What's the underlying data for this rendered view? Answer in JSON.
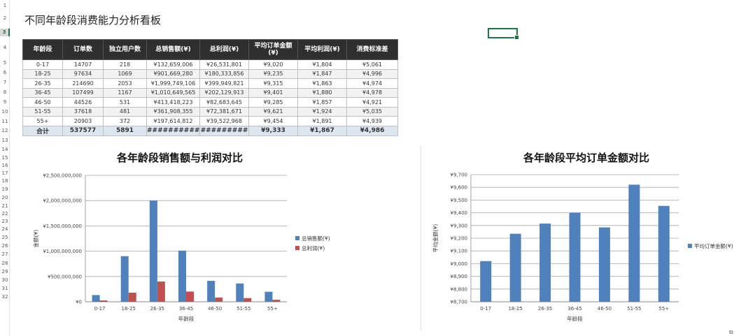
{
  "sheet": {
    "row_numbers": [
      "1",
      "2",
      "3",
      "4",
      "5",
      "6",
      "7",
      "8",
      "9",
      "10",
      "11",
      "12",
      "13",
      "14",
      "15",
      "16",
      "17",
      "18",
      "19",
      "20",
      "21",
      "22",
      "23",
      "24",
      "25",
      "26",
      "27",
      "28",
      "29",
      "30",
      "31",
      "32"
    ],
    "active_row": "3"
  },
  "title": "不同年龄段消费能力分析看板",
  "table": {
    "headers": [
      "年龄段",
      "订单数",
      "独立用户数",
      "总销售额(¥)",
      "总利润(¥)",
      "平均订单金额(¥)",
      "平均利润(¥)",
      "消费标准差"
    ],
    "rows": [
      [
        "0-17",
        "14707",
        "218",
        "¥132,659,006",
        "¥26,531,801",
        "¥9,020",
        "¥1,804",
        "¥5,061"
      ],
      [
        "18-25",
        "97634",
        "1069",
        "¥901,669,280",
        "¥180,333,856",
        "¥9,235",
        "¥1,847",
        "¥4,996"
      ],
      [
        "26-35",
        "214690",
        "2053",
        "¥1,999,749,106",
        "¥399,949,821",
        "¥9,315",
        "¥1,863",
        "¥4,974"
      ],
      [
        "36-45",
        "107499",
        "1167",
        "¥1,010,649,565",
        "¥202,129,913",
        "¥9,401",
        "¥1,880",
        "¥4,978"
      ],
      [
        "46-50",
        "44526",
        "531",
        "¥413,418,223",
        "¥82,683,645",
        "¥9,285",
        "¥1,857",
        "¥4,921"
      ],
      [
        "51-55",
        "37618",
        "481",
        "¥361,908,355",
        "¥72,381,671",
        "¥9,621",
        "¥1,924",
        "¥5,035"
      ],
      [
        "55+",
        "20903",
        "372",
        "¥197,614,812",
        "¥39,522,968",
        "¥9,454",
        "¥1,891",
        "¥4,939"
      ]
    ],
    "total": [
      "合计",
      "537577",
      "5891",
      "##########",
      "#########",
      "¥9,333",
      "¥1,867",
      "¥4,986"
    ]
  },
  "chart_data": [
    {
      "type": "bar",
      "title": "各年龄段销售额与利润对比",
      "categories": [
        "0-17",
        "18-25",
        "26-35",
        "36-45",
        "46-50",
        "51-55",
        "55+"
      ],
      "series": [
        {
          "name": "总销售额(¥)",
          "color": "#4f81bd",
          "values": [
            132659006,
            901669280,
            1999749106,
            1010649565,
            413418223,
            361908355,
            197614812
          ]
        },
        {
          "name": "总利润(¥)",
          "color": "#c0504d",
          "values": [
            26531801,
            180333856,
            399949821,
            202129913,
            82683645,
            72381671,
            39522968
          ]
        }
      ],
      "xlabel": "年龄段",
      "ylabel": "金额(¥)",
      "ylim": [
        0,
        2500000000
      ],
      "yticks": [
        0,
        500000000,
        1000000000,
        1500000000,
        2000000000,
        2500000000
      ],
      "ytick_labels": [
        "¥0",
        "¥500,000,000",
        "¥1,000,000,000",
        "¥1,500,000,000",
        "¥2,000,000,000",
        "¥2,500,000,000"
      ],
      "grid": true,
      "legend": "right"
    },
    {
      "type": "bar",
      "title": "各年龄段平均订单金额对比",
      "categories": [
        "0-17",
        "18-25",
        "26-35",
        "36-45",
        "46-50",
        "51-55",
        "55+"
      ],
      "series": [
        {
          "name": "平均订单金额(¥)",
          "color": "#4f81bd",
          "values": [
            9020,
            9235,
            9315,
            9401,
            9285,
            9621,
            9454
          ]
        }
      ],
      "xlabel": "年龄段",
      "ylabel": "平均金额(¥)",
      "ylim": [
        8700,
        9700
      ],
      "yticks": [
        8700,
        8800,
        8900,
        9000,
        9100,
        9200,
        9300,
        9400,
        9500,
        9600,
        9700
      ],
      "ytick_labels": [
        "¥8,700",
        "¥8,800",
        "¥8,900",
        "¥9,000",
        "¥9,100",
        "¥9,200",
        "¥9,300",
        "¥9,400",
        "¥9,500",
        "¥9,600",
        "¥9,700"
      ],
      "grid": true,
      "legend": "right"
    }
  ]
}
